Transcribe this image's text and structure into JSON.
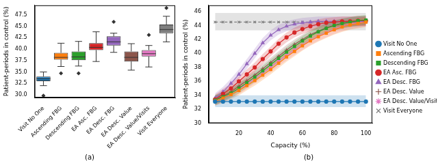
{
  "chart_data": [
    {
      "type": "box",
      "caption": "(a)",
      "y_label": "Patient-periods in control (%)",
      "ylim": [
        29.4,
        49.6
      ],
      "yticks": [
        {
          "value": 30,
          "label": "30.0"
        },
        {
          "value": 32.5,
          "label": "32.5"
        },
        {
          "value": 35,
          "label": "35.0"
        },
        {
          "value": 37.5,
          "label": "37.5"
        },
        {
          "value": 40,
          "label": "40.0"
        },
        {
          "value": 42.5,
          "label": "42.5"
        },
        {
          "value": 45,
          "label": "45.0"
        },
        {
          "value": 47.5,
          "label": "47.5"
        }
      ],
      "grid": false,
      "categories": [
        "Visit No One",
        "Ascending FBG",
        "Descending FBG",
        "EA Asc. FBG",
        "EA Desc. FBG",
        "EA Desc. Value",
        "EA Desc. Value/Visits",
        "Visit Everyone"
      ],
      "colors": [
        "#1f77b4",
        "#ff7f0e",
        "#2ca02c",
        "#d62728",
        "#9467bd",
        "#8c564b",
        "#e377c2",
        "#7f7f7f"
      ],
      "boxes": [
        {
          "whisker_low": 32.0,
          "q1": 33.0,
          "median": 33.5,
          "q3": 34.0,
          "whisker_high": 35.0,
          "outliers": [
            29.8
          ]
        },
        {
          "whisker_low": 36.2,
          "q1": 37.7,
          "median": 38.2,
          "q3": 39.2,
          "whisker_high": 41.3,
          "outliers": [
            34.7
          ]
        },
        {
          "whisker_low": 36.3,
          "q1": 37.6,
          "median": 38.3,
          "q3": 39.5,
          "whisker_high": 41.7,
          "outliers": [
            34.7
          ]
        },
        {
          "whisker_low": 37.3,
          "q1": 39.8,
          "median": 40.4,
          "q3": 41.3,
          "whisker_high": 43.8,
          "outliers": []
        },
        {
          "whisker_low": 39.3,
          "q1": 40.8,
          "median": 41.6,
          "q3": 42.8,
          "whisker_high": 43.5,
          "outliers": [
            46.0
          ]
        },
        {
          "whisker_low": 35.4,
          "q1": 37.3,
          "median": 38.2,
          "q3": 39.5,
          "whisker_high": 41.2,
          "outliers": []
        },
        {
          "whisker_low": 36.1,
          "q1": 38.4,
          "median": 39.0,
          "q3": 39.8,
          "whisker_high": 40.8,
          "outliers": [
            43.1
          ]
        },
        {
          "whisker_low": 41.6,
          "q1": 43.5,
          "median": 44.3,
          "q3": 45.4,
          "whisker_high": 47.2,
          "outliers": [
            49.0
          ]
        }
      ]
    },
    {
      "type": "line",
      "caption": "(b)",
      "x_label": "Capacity (%)",
      "y_label": "Patient-periods in control (%)",
      "xlim": [
        1,
        104
      ],
      "xticks": [
        20,
        40,
        60,
        80,
        100
      ],
      "ylim": [
        30,
        46.9
      ],
      "yticks": [
        30,
        32,
        34,
        36,
        38,
        40,
        42,
        44,
        46
      ],
      "grid": false,
      "legend": "right",
      "x": [
        5,
        10,
        15,
        20,
        25,
        30,
        35,
        40,
        45,
        50,
        55,
        60,
        65,
        70,
        75,
        80,
        85,
        90,
        95,
        100
      ],
      "series": [
        {
          "name": "Visit No One",
          "color": "#1f77b4",
          "marker": "circle",
          "line_style": "solid",
          "values": [
            33.1,
            33.1,
            33.1,
            33.1,
            33.1,
            33.1,
            33.1,
            33.1,
            33.1,
            33.1,
            33.1,
            33.1,
            33.1,
            33.1,
            33.1,
            33.1,
            33.1,
            33.1,
            33.1,
            33.1
          ],
          "lower": [
            32.3,
            32.3,
            32.3,
            32.3,
            32.3,
            32.3,
            32.3,
            32.3,
            32.3,
            32.3,
            32.3,
            32.3,
            32.3,
            32.3,
            32.3,
            32.3,
            32.3,
            32.3,
            32.3,
            32.3
          ],
          "upper": [
            34.0,
            34.0,
            34.0,
            34.0,
            34.0,
            34.0,
            34.0,
            34.0,
            34.0,
            34.0,
            34.0,
            34.0,
            34.0,
            34.0,
            34.0,
            34.0,
            34.0,
            34.0,
            34.0,
            34.0
          ]
        },
        {
          "name": "Ascending FBG",
          "color": "#ff7f0e",
          "marker": "rect",
          "line_style": "solid",
          "values": [
            33.2,
            33.6,
            34.1,
            34.7,
            35.4,
            36.1,
            36.9,
            37.7,
            38.6,
            39.5,
            40.3,
            41.1,
            41.8,
            42.4,
            42.9,
            43.4,
            43.8,
            44.1,
            44.3,
            44.5
          ],
          "lower": [
            32.5,
            32.9,
            33.4,
            34.0,
            34.7,
            35.4,
            36.2,
            37.0,
            37.9,
            38.8,
            39.6,
            40.4,
            41.1,
            41.7,
            42.2,
            42.7,
            43.1,
            43.4,
            43.6,
            43.8
          ],
          "upper": [
            33.9,
            34.3,
            34.8,
            35.4,
            36.1,
            36.8,
            37.6,
            38.4,
            39.3,
            40.2,
            41.0,
            41.8,
            42.5,
            43.1,
            43.6,
            44.1,
            44.5,
            44.8,
            45.0,
            45.2
          ]
        },
        {
          "name": "Descending FBG",
          "color": "#2ca02c",
          "marker": "rect",
          "line_style": "solid",
          "values": [
            33.3,
            33.8,
            34.3,
            35.0,
            35.8,
            36.6,
            37.5,
            38.4,
            39.3,
            40.2,
            41.0,
            41.8,
            42.5,
            43.1,
            43.6,
            44.0,
            44.3,
            44.5,
            44.7,
            44.8
          ],
          "lower": [
            32.6,
            33.1,
            33.6,
            34.3,
            35.1,
            35.9,
            36.8,
            37.7,
            38.6,
            39.5,
            40.3,
            41.1,
            41.8,
            42.4,
            42.9,
            43.3,
            43.6,
            43.8,
            44.0,
            44.1
          ],
          "upper": [
            34.0,
            34.5,
            35.0,
            35.7,
            36.5,
            37.3,
            38.2,
            39.1,
            40.0,
            40.9,
            41.7,
            42.5,
            43.2,
            43.8,
            44.3,
            44.7,
            45.0,
            45.2,
            45.4,
            45.5
          ]
        },
        {
          "name": "EA Asc. FBG",
          "color": "#d62728",
          "marker": "circle",
          "line_style": "solid",
          "values": [
            33.4,
            34.2,
            35.0,
            36.0,
            37.0,
            38.0,
            39.2,
            40.3,
            41.4,
            42.3,
            43.0,
            43.5,
            43.9,
            44.2,
            44.4,
            44.5,
            44.6,
            44.6,
            44.7,
            44.7
          ],
          "lower": [
            32.7,
            33.5,
            34.3,
            35.3,
            36.3,
            37.3,
            38.5,
            39.6,
            40.7,
            41.6,
            42.3,
            42.8,
            43.2,
            43.5,
            43.7,
            43.8,
            43.9,
            43.9,
            44.0,
            44.0
          ],
          "upper": [
            34.1,
            34.9,
            35.7,
            36.7,
            37.7,
            38.7,
            39.9,
            41.0,
            42.1,
            43.0,
            43.7,
            44.2,
            44.6,
            44.9,
            45.1,
            45.2,
            45.3,
            45.3,
            45.4,
            45.4
          ]
        },
        {
          "name": "EA Desc. FBG",
          "color": "#9467bd",
          "marker": "triangle",
          "line_style": "solid",
          "values": [
            33.6,
            34.5,
            35.7,
            37.0,
            38.5,
            40.0,
            41.5,
            42.6,
            43.4,
            43.9,
            44.2,
            44.4,
            44.5,
            44.6,
            44.6,
            44.6,
            44.6,
            44.6,
            44.6,
            44.6
          ],
          "lower": [
            32.9,
            33.8,
            35.0,
            36.3,
            37.8,
            39.3,
            40.8,
            41.9,
            42.7,
            43.2,
            43.5,
            43.7,
            43.8,
            43.9,
            43.9,
            43.9,
            43.9,
            43.9,
            43.9,
            43.9
          ],
          "upper": [
            34.3,
            35.2,
            36.4,
            37.7,
            39.2,
            40.7,
            42.2,
            43.3,
            44.1,
            44.6,
            44.9,
            45.1,
            45.2,
            45.3,
            45.3,
            45.3,
            45.3,
            45.3,
            45.3,
            45.3
          ]
        },
        {
          "name": "EA Desc. Value",
          "color": "#8c564b",
          "marker": "cross",
          "line_style": "solid",
          "values": [
            33.3,
            33.9,
            34.5,
            35.3,
            36.1,
            36.9,
            37.8,
            38.7,
            39.6,
            40.5,
            41.3,
            42.0,
            42.7,
            43.2,
            43.7,
            44.0,
            44.3,
            44.5,
            44.6,
            44.7
          ],
          "lower": [
            32.6,
            33.2,
            33.8,
            34.6,
            35.4,
            36.2,
            37.1,
            38.0,
            38.9,
            39.8,
            40.6,
            41.3,
            42.0,
            42.5,
            43.0,
            43.3,
            43.6,
            43.8,
            43.9,
            44.0
          ],
          "upper": [
            34.0,
            34.6,
            35.2,
            36.0,
            36.8,
            37.6,
            38.5,
            39.4,
            40.3,
            41.2,
            42.0,
            42.7,
            43.4,
            43.9,
            44.4,
            44.7,
            45.0,
            45.2,
            45.3,
            45.4
          ]
        },
        {
          "name": "EA Desc. Value/Visits",
          "color": "#e377c2",
          "marker": "star",
          "line_style": "solid",
          "values": [
            33.2,
            33.7,
            34.3,
            34.9,
            35.6,
            36.4,
            37.2,
            38.0,
            38.9,
            39.7,
            40.5,
            41.2,
            41.9,
            42.5,
            43.0,
            43.5,
            43.9,
            44.2,
            44.4,
            44.6
          ],
          "lower": [
            32.5,
            33.0,
            33.6,
            34.2,
            34.9,
            35.7,
            36.5,
            37.3,
            38.2,
            39.0,
            39.8,
            40.5,
            41.2,
            41.8,
            42.3,
            42.8,
            43.2,
            43.5,
            43.7,
            43.9
          ],
          "upper": [
            33.9,
            34.4,
            35.0,
            35.6,
            36.3,
            37.1,
            37.9,
            38.7,
            39.6,
            40.4,
            41.2,
            41.9,
            42.6,
            43.2,
            43.7,
            44.2,
            44.6,
            44.9,
            45.1,
            45.3
          ]
        },
        {
          "name": "Visit Everyone",
          "color": "#7f7f7f",
          "marker": "crossRot",
          "line_style": "dashed",
          "values": [
            44.5,
            44.5,
            44.5,
            44.5,
            44.5,
            44.5,
            44.5,
            44.5,
            44.5,
            44.5,
            44.5,
            44.5,
            44.5,
            44.5,
            44.5,
            44.5,
            44.5,
            44.5,
            44.5,
            44.5
          ],
          "lower": [
            43.3,
            43.3,
            43.3,
            43.3,
            43.3,
            43.3,
            43.3,
            43.3,
            43.3,
            43.3,
            43.3,
            43.3,
            43.3,
            43.3,
            43.3,
            43.3,
            43.3,
            43.3,
            43.3,
            43.3
          ],
          "upper": [
            45.8,
            45.8,
            45.8,
            45.8,
            45.8,
            45.8,
            45.8,
            45.8,
            45.8,
            45.8,
            45.8,
            45.8,
            45.8,
            45.8,
            45.8,
            45.8,
            45.8,
            45.8,
            45.8,
            45.8
          ]
        }
      ]
    }
  ]
}
